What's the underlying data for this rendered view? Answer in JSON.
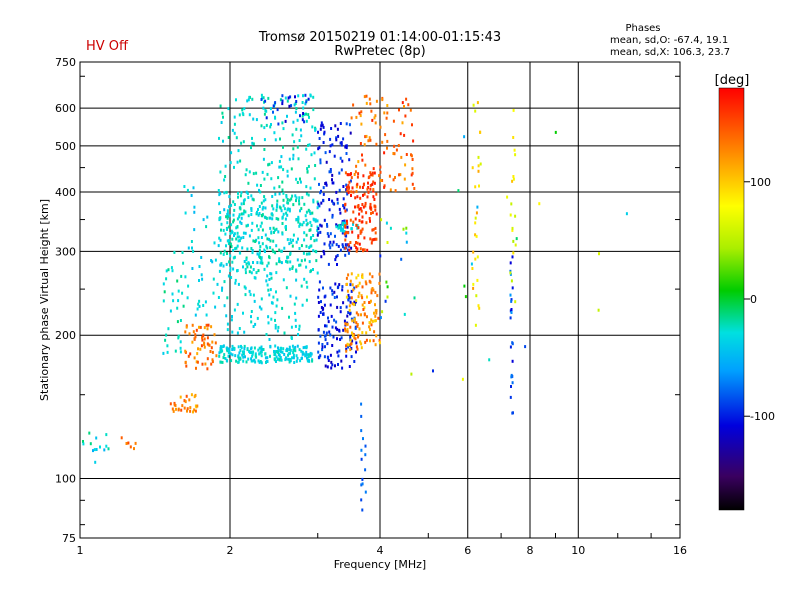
{
  "header": {
    "hv_status": "HV Off",
    "title_line1": "Tromsø 20150219 01:14:00-01:15:43",
    "title_line2": "RwPretec (8p)",
    "stats_title": "Phases",
    "stats_o": "mean, sd,O: -67.4, 19.1",
    "stats_x": "mean, sd,X: 106.3, 23.7"
  },
  "colors": {
    "hv_status": "#cc0000",
    "grid": "#000000"
  },
  "chart_data": {
    "type": "scatter",
    "xlabel": "Frequency [MHz]",
    "ylabel": "Stationary phase Virtual Height [km]",
    "x_scale": "log",
    "y_scale": "log",
    "xlim": [
      1,
      16
    ],
    "ylim": [
      75,
      750
    ],
    "x_ticks": [
      1,
      2,
      4,
      6,
      8,
      10,
      16
    ],
    "y_ticks": [
      75,
      100,
      200,
      300,
      400,
      500,
      600,
      750
    ],
    "grid": true,
    "colorbar": {
      "label": "[deg]",
      "range": [
        -180,
        180
      ],
      "ticks": [
        100,
        0,
        -100
      ]
    },
    "clusters": [
      {
        "f": [
          1.0,
          1.15
        ],
        "h": [
          108,
          125
        ],
        "n": 14,
        "phase": [
          -60,
          -10
        ]
      },
      {
        "f": [
          1.2,
          1.3
        ],
        "h": [
          115,
          122
        ],
        "n": 6,
        "phase": [
          120,
          160
        ]
      },
      {
        "f": [
          1.47,
          1.62
        ],
        "h": [
          180,
          300
        ],
        "n": 35,
        "phase": [
          -40,
          -10
        ]
      },
      {
        "f": [
          1.52,
          1.72
        ],
        "h": [
          138,
          150
        ],
        "n": 30,
        "phase": [
          100,
          150
        ]
      },
      {
        "f": [
          1.62,
          1.9
        ],
        "h": [
          170,
          210
        ],
        "n": 60,
        "phase": [
          110,
          160
        ]
      },
      {
        "f": [
          1.62,
          1.95
        ],
        "h": [
          220,
          420
        ],
        "n": 50,
        "phase": [
          -50,
          -20
        ]
      },
      {
        "f": [
          1.9,
          2.95
        ],
        "h": [
          175,
          190
        ],
        "n": 200,
        "phase": [
          -45,
          -20
        ]
      },
      {
        "f": [
          1.9,
          3.0
        ],
        "h": [
          270,
          400
        ],
        "n": 380,
        "phase": [
          -40,
          -15
        ]
      },
      {
        "f": [
          1.9,
          3.0
        ],
        "h": [
          400,
          640
        ],
        "n": 160,
        "phase": [
          -40,
          -15
        ]
      },
      {
        "f": [
          1.95,
          2.9
        ],
        "h": [
          195,
          270
        ],
        "n": 90,
        "phase": [
          -40,
          -20
        ]
      },
      {
        "f": [
          2.3,
          2.9
        ],
        "h": [
          550,
          640
        ],
        "n": 25,
        "phase": [
          -120,
          -80
        ]
      },
      {
        "f": [
          3.0,
          3.6
        ],
        "h": [
          170,
          260
        ],
        "n": 130,
        "phase": [
          -120,
          -80
        ]
      },
      {
        "f": [
          3.0,
          3.5
        ],
        "h": [
          280,
          560
        ],
        "n": 140,
        "phase": [
          -120,
          -80
        ]
      },
      {
        "f": [
          3.25,
          3.65
        ],
        "h": [
          330,
          345
        ],
        "n": 25,
        "phase": [
          -40,
          -20
        ]
      },
      {
        "f": [
          3.4,
          4.0
        ],
        "h": [
          185,
          270
        ],
        "n": 120,
        "phase": [
          90,
          150
        ]
      },
      {
        "f": [
          3.4,
          3.95
        ],
        "h": [
          300,
          440
        ],
        "n": 130,
        "phase": [
          140,
          175
        ]
      },
      {
        "f": [
          3.5,
          4.7
        ],
        "h": [
          400,
          640
        ],
        "n": 100,
        "phase": [
          110,
          170
        ]
      },
      {
        "f": [
          3.65,
          3.75
        ],
        "h": [
          85,
          150
        ],
        "n": 15,
        "phase": [
          -90,
          -70
        ]
      },
      {
        "f": [
          4.0,
          4.7
        ],
        "h": [
          210,
          350
        ],
        "n": 18,
        "phase": [
          -100,
          80
        ]
      },
      {
        "f": [
          6.1,
          6.4
        ],
        "h": [
          200,
          650
        ],
        "n": 28,
        "phase": [
          60,
          120
        ]
      },
      {
        "f": [
          7.3,
          7.4
        ],
        "h": [
          120,
          320
        ],
        "n": 24,
        "phase": [
          -110,
          -60
        ]
      },
      {
        "f": [
          7.3,
          7.5
        ],
        "h": [
          180,
          620
        ],
        "n": 18,
        "phase": [
          40,
          110
        ]
      },
      {
        "f": [
          4.6,
          13.5
        ],
        "h": [
          140,
          560
        ],
        "n": 18,
        "phase": [
          -100,
          100
        ]
      }
    ]
  }
}
